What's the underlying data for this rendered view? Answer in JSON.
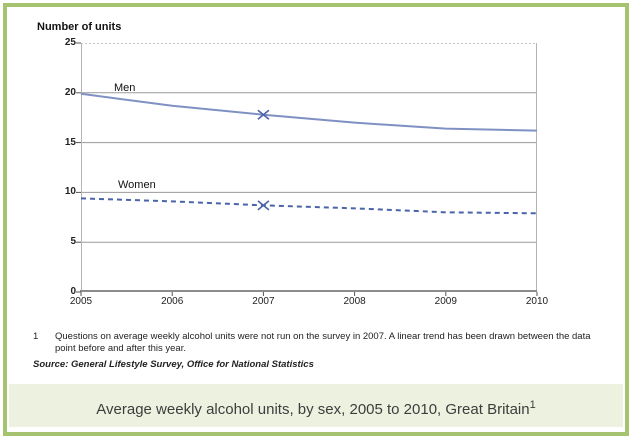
{
  "frame": {
    "border_color": "#a6c370",
    "caption_band_color": "#edf1e0"
  },
  "chart_data": {
    "type": "line",
    "ylabel": "Number of units",
    "x": [
      2005,
      2006,
      2007,
      2008,
      2009,
      2010
    ],
    "x_tick_labels": [
      "2005",
      "2006",
      "2007",
      "2008",
      "2009",
      "2010"
    ],
    "ylim": [
      0,
      25
    ],
    "yticks": [
      0,
      5,
      10,
      15,
      20,
      25
    ],
    "grid": "horizontal",
    "legend_position": "inline-labels",
    "series": [
      {
        "name": "Men",
        "style": "solid",
        "color": "#7f91c3",
        "values": [
          19.9,
          18.7,
          17.8,
          17.0,
          16.4,
          16.2
        ]
      },
      {
        "name": "Women",
        "style": "dashed",
        "color": "#4b64a9",
        "values": [
          9.4,
          9.1,
          8.7,
          8.4,
          8.0,
          7.9
        ]
      }
    ],
    "marker": {
      "year": 2007,
      "shape": "x",
      "color": "#4b64a9",
      "meaning": "interpolated value (survey not run in 2007)"
    }
  },
  "footnote": {
    "number": "1",
    "lines": [
      "Questions on average weekly alcohol units were not run on the survey in 2007. A linear trend has been drawn between the data",
      "point before and after this year."
    ]
  },
  "source": "Source: General Lifestyle Survey, Office for National Statistics",
  "caption": {
    "text": "Average weekly alcohol units, by sex, 2005 to 2010, Great Britain",
    "superscript": "1"
  }
}
